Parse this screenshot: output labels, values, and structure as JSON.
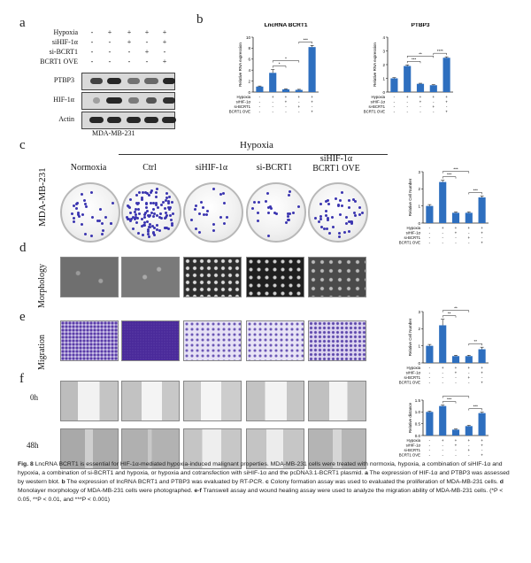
{
  "panel_letters": {
    "a": "a",
    "b": "b",
    "c": "c",
    "d": "d",
    "e": "e",
    "f": "f"
  },
  "blot": {
    "conditions": [
      {
        "label": "Hypoxia",
        "signs": [
          "-",
          "+",
          "+",
          "+",
          "+"
        ]
      },
      {
        "label": "siHIF-1α",
        "signs": [
          "-",
          "-",
          "+",
          "-",
          "+"
        ]
      },
      {
        "label": "si-BCRT1",
        "signs": [
          "-",
          "-",
          "-",
          "+",
          "-"
        ]
      },
      {
        "label": "BCRT1 OVE",
        "signs": [
          "-",
          "-",
          "-",
          "-",
          "+"
        ]
      }
    ],
    "proteins": [
      "PTBP3",
      "HIF-1α",
      "Actin"
    ],
    "cell_line": "MDA-MB-231"
  },
  "chart_data": [
    {
      "type": "bar",
      "title": "LncRNA BCRT1",
      "ylabel": "Relative RNA expression",
      "ylim": [
        0,
        10
      ],
      "categories": [
        "Ctrl",
        "Hypoxia",
        "Hypoxia+siHIF-1α",
        "Hypoxia+si-BCRT1",
        "Hypoxia+siHIF-1α+BCRT1 OVE"
      ],
      "values": [
        1.0,
        3.5,
        0.5,
        0.4,
        8.2
      ],
      "errors": [
        0.1,
        0.6,
        0.1,
        0.1,
        0.3
      ],
      "yticks": [
        "0",
        "2",
        "4",
        "6",
        "8",
        "10"
      ],
      "significance": [
        "*",
        "*",
        "***"
      ]
    },
    {
      "type": "bar",
      "title": "PTBP3",
      "ylabel": "Relative RNA expression",
      "ylim": [
        0,
        4
      ],
      "categories": [
        "Ctrl",
        "Hypoxia",
        "Hypoxia+siHIF-1α",
        "Hypoxia+si-BCRT1",
        "Hypoxia+siHIF-1α+BCRT1 OVE"
      ],
      "values": [
        1.0,
        1.9,
        0.6,
        0.5,
        2.5
      ],
      "errors": [
        0.05,
        0.08,
        0.04,
        0.04,
        0.07
      ],
      "yticks": [
        "0",
        "1",
        "2",
        "3",
        "4"
      ],
      "significance": [
        "***",
        "**",
        "****"
      ]
    },
    {
      "type": "bar",
      "title": "",
      "ylabel": "Relative Cell Number",
      "ylim": [
        0,
        3
      ],
      "categories": [
        "Ctrl",
        "Hypoxia",
        "Hypoxia+siHIF-1α",
        "Hypoxia+si-BCRT1",
        "Hypoxia+siHIF-1α+BCRT1 OVE"
      ],
      "values": [
        1.0,
        2.4,
        0.6,
        0.6,
        1.5
      ],
      "errors": [
        0.08,
        0.1,
        0.05,
        0.05,
        0.08
      ],
      "yticks": [
        "0",
        "1",
        "2",
        "3"
      ],
      "significance": [
        "***",
        "***",
        "***"
      ]
    },
    {
      "type": "bar",
      "title": "",
      "ylabel": "Relative Cell Number",
      "ylim": [
        0,
        3
      ],
      "categories": [
        "Ctrl",
        "Hypoxia",
        "Hypoxia+siHIF-1α",
        "Hypoxia+si-BCRT1",
        "Hypoxia+siHIF-1α+BCRT1 OVE"
      ],
      "values": [
        1.0,
        2.2,
        0.4,
        0.4,
        0.8
      ],
      "errors": [
        0.08,
        0.35,
        0.05,
        0.05,
        0.12
      ],
      "yticks": [
        "0",
        "1",
        "2",
        "3"
      ],
      "significance": [
        "**",
        "**",
        "**"
      ]
    },
    {
      "type": "bar",
      "title": "",
      "ylabel": "Relative distance",
      "ylim": [
        0,
        1.5
      ],
      "categories": [
        "Ctrl",
        "Hypoxia",
        "Hypoxia+siHIF-1α",
        "Hypoxia+si-BCRT1",
        "Hypoxia+siHIF-1α+BCRT1 OVE"
      ],
      "values": [
        1.0,
        1.25,
        0.25,
        0.4,
        0.95
      ],
      "errors": [
        0.03,
        0.04,
        0.03,
        0.03,
        0.04
      ],
      "yticks": [
        "0.0",
        "0.5",
        "1.0",
        "1.5"
      ],
      "significance": [
        "***",
        "***",
        "***"
      ]
    }
  ],
  "x_conditions": {
    "rows": [
      {
        "label": "Hypoxia",
        "signs": [
          "-",
          "+",
          "+",
          "+",
          "+"
        ]
      },
      {
        "label": "siHIF-1α",
        "signs": [
          "-",
          "-",
          "+",
          "-",
          "+"
        ]
      },
      {
        "label": "si-BCRT1",
        "signs": [
          "-",
          "-",
          "-",
          "+",
          "-"
        ]
      },
      {
        "label": "BCRT1 OVE",
        "signs": [
          "-",
          "-",
          "-",
          "-",
          "+"
        ]
      }
    ]
  },
  "hypoxia_header": "Hypoxia",
  "column_headers": [
    "Normoxia",
    "Ctrl",
    "siHIF-1α",
    "si-BCRT1",
    "siHIF-1α\nBCRT1 OVE"
  ],
  "row_labels": {
    "c": "MDA-MB-231",
    "d": "Morphology",
    "e": "Migration",
    "f0": "0h",
    "f48": "48h"
  },
  "caption": {
    "fig": "Fig. 8",
    "title": "LncRNA BCRT1 is essential for HIF-1α-mediated hypoxia-induced malignant properties.",
    "body_1": "MDA-MB-231 cells were treated with normoxia, hypoxia, a combination of siHIF-1α and hypoxia, a combination of si-BCRT1 and hypoxia, or hypoxia and cotransfection with siHIF-1α and the pcDNA3.1-BCRT1 plasmid.",
    "a": "a",
    "a_text": "The expression of HIF-1α and PTBP3 was assessed by western blot.",
    "b": "b",
    "b_text": "The expression of lncRNA BCRT1 and PTBP3 was evaluated by RT-PCR.",
    "c": "c",
    "c_text": "Colony formation assay was used to evaluated the proliferation of MDA-MB-231 cells.",
    "d": "d",
    "d_text": "Monolayer morphology of MDA-MB-231 cells were photographed.",
    "ef": "e-f",
    "ef_text": "Transwell assay and wound healing assay were used to analyze the migration ability of MDA-MB-231 cells. (*P < 0.05, **P < 0.01, and ***P < 0.001)"
  },
  "colors": {
    "bar": "#2e6fbf",
    "plate_dot": "#3b35b0",
    "migration": "#6a4fb0"
  }
}
